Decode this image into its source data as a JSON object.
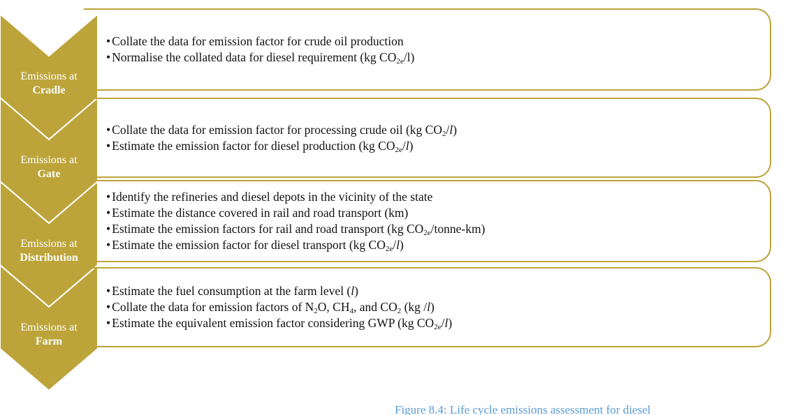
{
  "stages": [
    {
      "label": [
        "Emissions at",
        "Cradle"
      ],
      "bullets": [
        [
          "Collate the data for emission factor for crude oil production"
        ],
        [
          "Normalise the collated data for diesel requirement (kg CO",
          {
            "sub": "2e"
          },
          "/l)"
        ]
      ]
    },
    {
      "label": [
        "Emissions at",
        "Gate"
      ],
      "bullets": [
        [
          "Collate the data for emission factor for processing crude oil (kg CO",
          {
            "sub": "2"
          },
          "/",
          {
            "i": "l"
          },
          ")"
        ],
        [
          "Estimate the emission factor for diesel production (kg CO",
          {
            "sub": "2e"
          },
          "/",
          {
            "i": "l"
          },
          ")"
        ]
      ]
    },
    {
      "label": [
        "Emissions at",
        "Distribution"
      ],
      "bullets": [
        [
          "Identify the refineries and diesel depots in the vicinity of the state"
        ],
        [
          "Estimate the distance covered in rail and road transport (km)"
        ],
        [
          "Estimate the emission factors for rail and road transport (kg CO",
          {
            "sub": "2e"
          },
          "/tonne-km)"
        ],
        [
          "Estimate the emission factor for diesel transport (kg CO",
          {
            "sub": "2e"
          },
          "/",
          {
            "i": "l"
          },
          ")"
        ]
      ]
    },
    {
      "label": [
        "Emissions at",
        "Farm"
      ],
      "bullets": [
        [
          "Estimate the fuel consumption at the farm level (",
          {
            "i": "l"
          },
          ")"
        ],
        [
          "Collate the data for emission factors of N",
          {
            "sub": "2"
          },
          "O, CH",
          {
            "sub": "4"
          },
          ", and CO",
          {
            "sub": "2"
          },
          " (kg /",
          {
            "i": "l"
          },
          ")"
        ],
        [
          "Estimate the equivalent emission factor considering GWP (kg CO",
          {
            "sub": "2e"
          },
          "/",
          {
            "i": "l"
          },
          ")"
        ]
      ]
    }
  ],
  "caption": "Figure 8.4: Life cycle emissions assessment for diesel"
}
